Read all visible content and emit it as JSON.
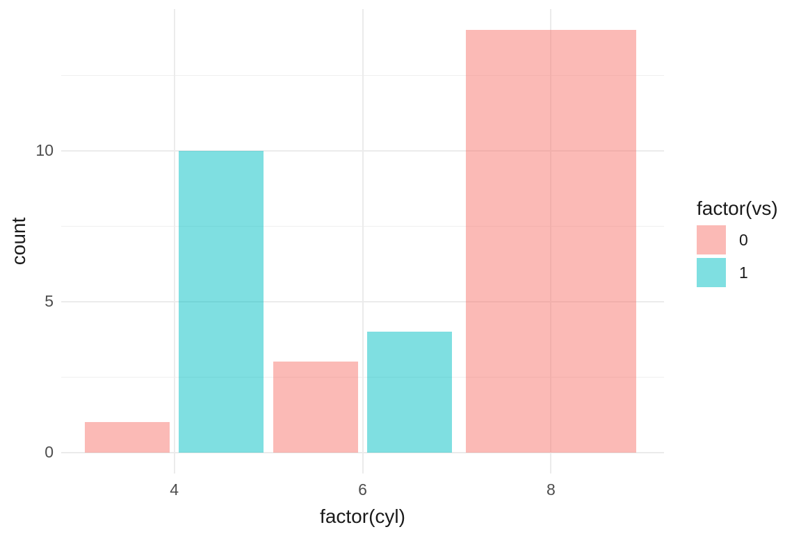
{
  "chart_data": {
    "type": "bar",
    "categories": [
      "4",
      "6",
      "8"
    ],
    "series": [
      {
        "name": "0",
        "values": [
          1,
          3,
          14
        ],
        "color": "#F8766D"
      },
      {
        "name": "1",
        "values": [
          10,
          4,
          null
        ],
        "color": "#00BFC4"
      }
    ],
    "title": "",
    "xlabel": "factor(cyl)",
    "ylabel": "count",
    "ylim": [
      0,
      14.7
    ],
    "yticks": [
      0,
      5,
      10
    ],
    "yticks_minor": [
      2.5,
      7.5,
      12.5
    ],
    "bar_position": "dodge",
    "bar_alpha": 0.5,
    "grid": true,
    "legend_position": "right",
    "legend_title": "factor(vs)"
  },
  "style": {
    "gridline_major_color": "#EBEBEB",
    "gridline_minor_color": "#EFEFEF",
    "tick_text_color": "#4D4D4D",
    "title_text_color": "#1A1A1A",
    "background_color": "#FFFFFF"
  }
}
